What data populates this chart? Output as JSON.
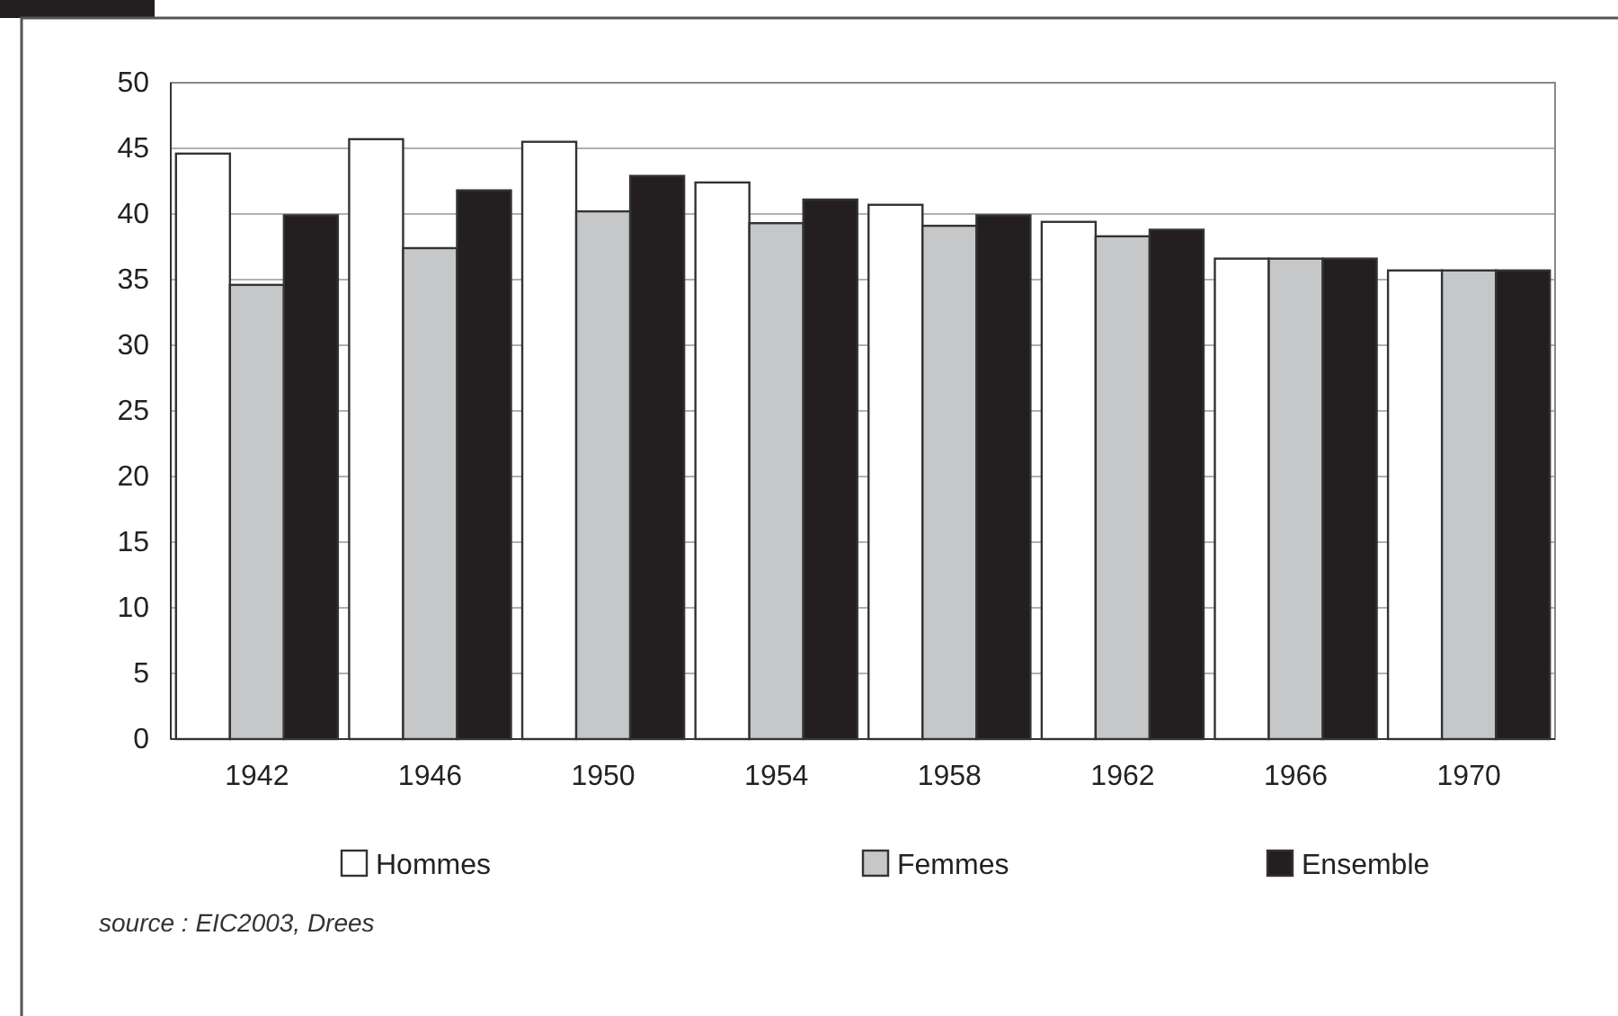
{
  "chart_data": {
    "type": "bar",
    "categories": [
      "1942",
      "1946",
      "1950",
      "1954",
      "1958",
      "1962",
      "1966",
      "1970"
    ],
    "series": [
      {
        "name": "Hommes",
        "color": "#ffffff",
        "values": [
          44.6,
          45.7,
          45.5,
          42.4,
          40.7,
          39.4,
          36.6,
          35.7
        ]
      },
      {
        "name": "Femmes",
        "color": "#c6c7c9",
        "values": [
          34.6,
          37.4,
          40.2,
          39.3,
          39.1,
          38.3,
          36.6,
          35.7
        ]
      },
      {
        "name": "Ensemble",
        "color": "#231f20",
        "values": [
          39.9,
          41.8,
          42.9,
          41.1,
          39.9,
          38.8,
          36.6,
          35.7
        ]
      }
    ],
    "ylim": [
      0,
      50
    ],
    "yticks": [
      0,
      5,
      10,
      15,
      20,
      25,
      30,
      35,
      40,
      45,
      50
    ],
    "grid": "y",
    "legend": "bottom",
    "annotations": [
      "source : EIC2003, Drees"
    ]
  }
}
